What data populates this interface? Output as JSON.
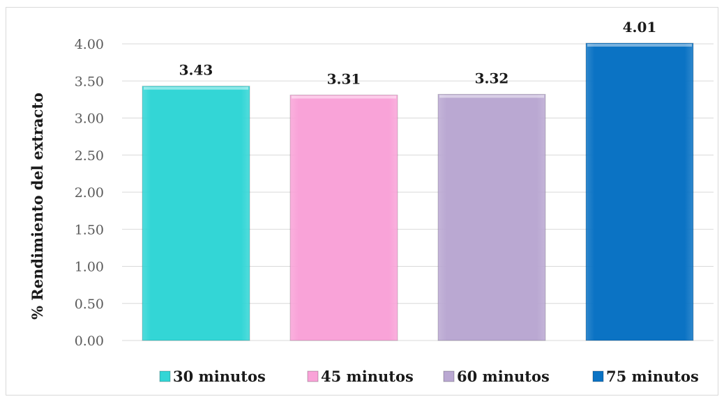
{
  "chart_data": {
    "type": "bar",
    "categories": [
      "30 minutos",
      "45 minutos",
      "60 minutos",
      "75 minutos"
    ],
    "values": [
      3.43,
      3.31,
      3.32,
      4.01
    ],
    "value_labels": [
      "3.43",
      "3.31",
      "3.32",
      "4.01"
    ],
    "colors": [
      "#33d6d6",
      "#f9a3d8",
      "#baa8d2",
      "#0b73c4"
    ],
    "ylabel": "% Rendimiento del extracto",
    "xlabel": "",
    "title": "",
    "ylim": [
      0,
      4.0
    ],
    "yticks": [
      "0.00",
      "0.50",
      "1.00",
      "1.50",
      "2.00",
      "2.50",
      "3.00",
      "3.50",
      "4.00"
    ],
    "ytick_values": [
      0,
      0.5,
      1,
      1.5,
      2,
      2.5,
      3,
      3.5,
      4
    ],
    "grid": true,
    "legend": {
      "position": "bottom",
      "entries": [
        "30 minutos",
        "45 minutos",
        "60 minutos",
        "75 minutos"
      ]
    }
  }
}
